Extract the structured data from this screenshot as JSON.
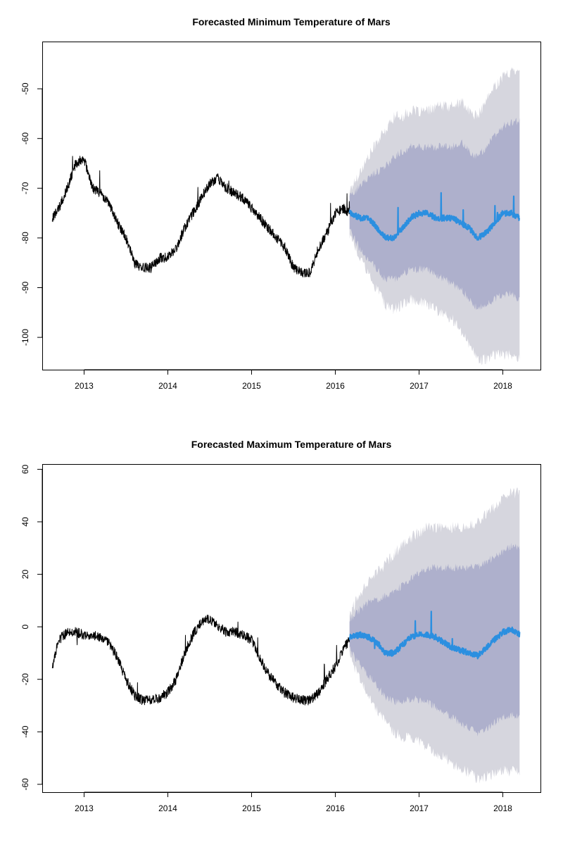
{
  "chart_data": [
    {
      "type": "line",
      "title": "Forecasted Minimum Temperature of Mars",
      "xlabel": "",
      "ylabel": "",
      "xlim": [
        2012.5,
        2018.45
      ],
      "ylim": [
        -106.5,
        -40.5
      ],
      "x_ticks": [
        2013,
        2014,
        2015,
        2016,
        2017,
        2018
      ],
      "x_tick_labels": [
        "2013",
        "2014",
        "2015",
        "2016",
        "2017",
        "2018"
      ],
      "y_ticks": [
        -100,
        -90,
        -80,
        -70,
        -60,
        -50
      ],
      "y_tick_labels": [
        "-100",
        "-90",
        "-80",
        "-70",
        "-60",
        "-50"
      ],
      "grid": false,
      "colors": {
        "history": "#000000",
        "forecast": "#2b8fe0",
        "band80": "#aeb0cc",
        "band95": "#d6d6de"
      },
      "series": [
        {
          "role": "history",
          "x": [
            2012.62,
            2012.7,
            2012.8,
            2012.9,
            2013.0,
            2013.1,
            2013.2,
            2013.3,
            2013.4,
            2013.5,
            2013.6,
            2013.7,
            2013.8,
            2013.9,
            2014.0,
            2014.1,
            2014.2,
            2014.3,
            2014.4,
            2014.5,
            2014.6,
            2014.7,
            2014.8,
            2014.9,
            2015.0,
            2015.1,
            2015.2,
            2015.3,
            2015.4,
            2015.5,
            2015.6,
            2015.7,
            2015.8,
            2015.9,
            2016.0,
            2016.1,
            2016.17
          ],
          "y": [
            -76,
            -74,
            -70,
            -65,
            -64,
            -70,
            -71,
            -73,
            -77,
            -80,
            -85,
            -86,
            -86,
            -84,
            -84,
            -82,
            -78,
            -75,
            -72,
            -69,
            -68,
            -70,
            -71,
            -72,
            -74,
            -76,
            -78,
            -80,
            -82,
            -86,
            -87,
            -87,
            -82,
            -79,
            -75,
            -74,
            -75
          ]
        },
        {
          "role": "forecast",
          "x": [
            2016.17,
            2016.3,
            2016.4,
            2016.5,
            2016.6,
            2016.7,
            2016.8,
            2016.9,
            2017.0,
            2017.1,
            2017.2,
            2017.3,
            2017.4,
            2017.5,
            2017.6,
            2017.7,
            2017.8,
            2017.9,
            2018.0,
            2018.1,
            2018.2
          ],
          "y": [
            -75,
            -76,
            -76,
            -78,
            -80,
            -80,
            -78,
            -76,
            -75,
            -75,
            -76,
            -76,
            -76,
            -77,
            -78,
            -80,
            -79,
            -77,
            -75,
            -75,
            -76
          ],
          "lower80": [
            -78,
            -82,
            -84,
            -86,
            -88,
            -88,
            -87,
            -86,
            -86,
            -86,
            -87,
            -88,
            -89,
            -90,
            -92,
            -94,
            -93,
            -92,
            -91,
            -91,
            -92
          ],
          "upper80": [
            -72,
            -70,
            -68,
            -67,
            -66,
            -64,
            -63,
            -62,
            -62,
            -62,
            -62,
            -62,
            -62,
            -61,
            -63,
            -64,
            -62,
            -60,
            -58,
            -57,
            -57
          ],
          "lower95": [
            -79,
            -84,
            -87,
            -90,
            -93,
            -94,
            -93,
            -92,
            -92,
            -93,
            -94,
            -95,
            -96,
            -98,
            -101,
            -104,
            -104,
            -103,
            -103,
            -103,
            -104
          ],
          "upper95": [
            -71,
            -67,
            -64,
            -61,
            -59,
            -56,
            -56,
            -55,
            -55,
            -55,
            -54,
            -54,
            -54,
            -53,
            -55,
            -56,
            -53,
            -50,
            -48,
            -47,
            -46
          ]
        }
      ]
    },
    {
      "type": "line",
      "title": "Forecasted Maximum Temperature of Mars",
      "xlabel": "",
      "ylabel": "",
      "xlim": [
        2012.5,
        2018.45
      ],
      "ylim": [
        -63,
        62
      ],
      "x_ticks": [
        2013,
        2014,
        2015,
        2016,
        2017,
        2018
      ],
      "x_tick_labels": [
        "2013",
        "2014",
        "2015",
        "2016",
        "2017",
        "2018"
      ],
      "y_ticks": [
        -60,
        -40,
        -20,
        0,
        20,
        40,
        60
      ],
      "y_tick_labels": [
        "-60",
        "-40",
        "-20",
        "0",
        "20",
        "40",
        "60"
      ],
      "grid": false,
      "colors": {
        "history": "#000000",
        "forecast": "#2b8fe0",
        "band80": "#aeb0cc",
        "band95": "#d6d6de"
      },
      "series": [
        {
          "role": "history",
          "x": [
            2012.62,
            2012.7,
            2012.8,
            2012.9,
            2013.0,
            2013.1,
            2013.2,
            2013.3,
            2013.4,
            2013.5,
            2013.6,
            2013.7,
            2013.8,
            2013.9,
            2014.0,
            2014.1,
            2014.2,
            2014.3,
            2014.4,
            2014.5,
            2014.6,
            2014.7,
            2014.8,
            2014.9,
            2015.0,
            2015.1,
            2015.2,
            2015.3,
            2015.4,
            2015.5,
            2015.6,
            2015.7,
            2015.8,
            2015.9,
            2016.0,
            2016.1,
            2016.17
          ],
          "y": [
            -15,
            -5,
            -2,
            -2,
            -3,
            -3,
            -4,
            -6,
            -12,
            -20,
            -26,
            -28,
            -28,
            -27,
            -25,
            -20,
            -10,
            -3,
            2,
            3,
            0,
            -2,
            -2,
            -3,
            -5,
            -12,
            -18,
            -22,
            -25,
            -27,
            -28,
            -28,
            -25,
            -20,
            -15,
            -8,
            -5
          ]
        },
        {
          "role": "forecast",
          "x": [
            2016.17,
            2016.3,
            2016.4,
            2016.5,
            2016.6,
            2016.7,
            2016.8,
            2016.9,
            2017.0,
            2017.1,
            2017.2,
            2017.3,
            2017.4,
            2017.5,
            2017.6,
            2017.7,
            2017.8,
            2017.9,
            2018.0,
            2018.1,
            2018.2
          ],
          "y": [
            -4,
            -3,
            -4,
            -6,
            -10,
            -10,
            -7,
            -4,
            -3,
            -3,
            -4,
            -6,
            -8,
            -9,
            -10,
            -11,
            -8,
            -5,
            -2,
            -1,
            -3
          ],
          "lower80": [
            -8,
            -14,
            -18,
            -22,
            -26,
            -28,
            -28,
            -27,
            -27,
            -28,
            -30,
            -32,
            -34,
            -36,
            -38,
            -40,
            -38,
            -36,
            -34,
            -33,
            -34
          ],
          "upper80": [
            2,
            6,
            9,
            10,
            11,
            13,
            15,
            18,
            20,
            22,
            22,
            22,
            22,
            22,
            22,
            22,
            24,
            26,
            28,
            30,
            30
          ],
          "lower95": [
            -10,
            -20,
            -26,
            -31,
            -36,
            -39,
            -41,
            -42,
            -43,
            -45,
            -47,
            -49,
            -51,
            -53,
            -55,
            -57,
            -56,
            -55,
            -54,
            -54,
            -55
          ],
          "upper95": [
            4,
            12,
            17,
            20,
            23,
            27,
            30,
            33,
            35,
            37,
            37,
            37,
            37,
            37,
            38,
            39,
            42,
            45,
            48,
            50,
            50
          ]
        }
      ]
    }
  ]
}
